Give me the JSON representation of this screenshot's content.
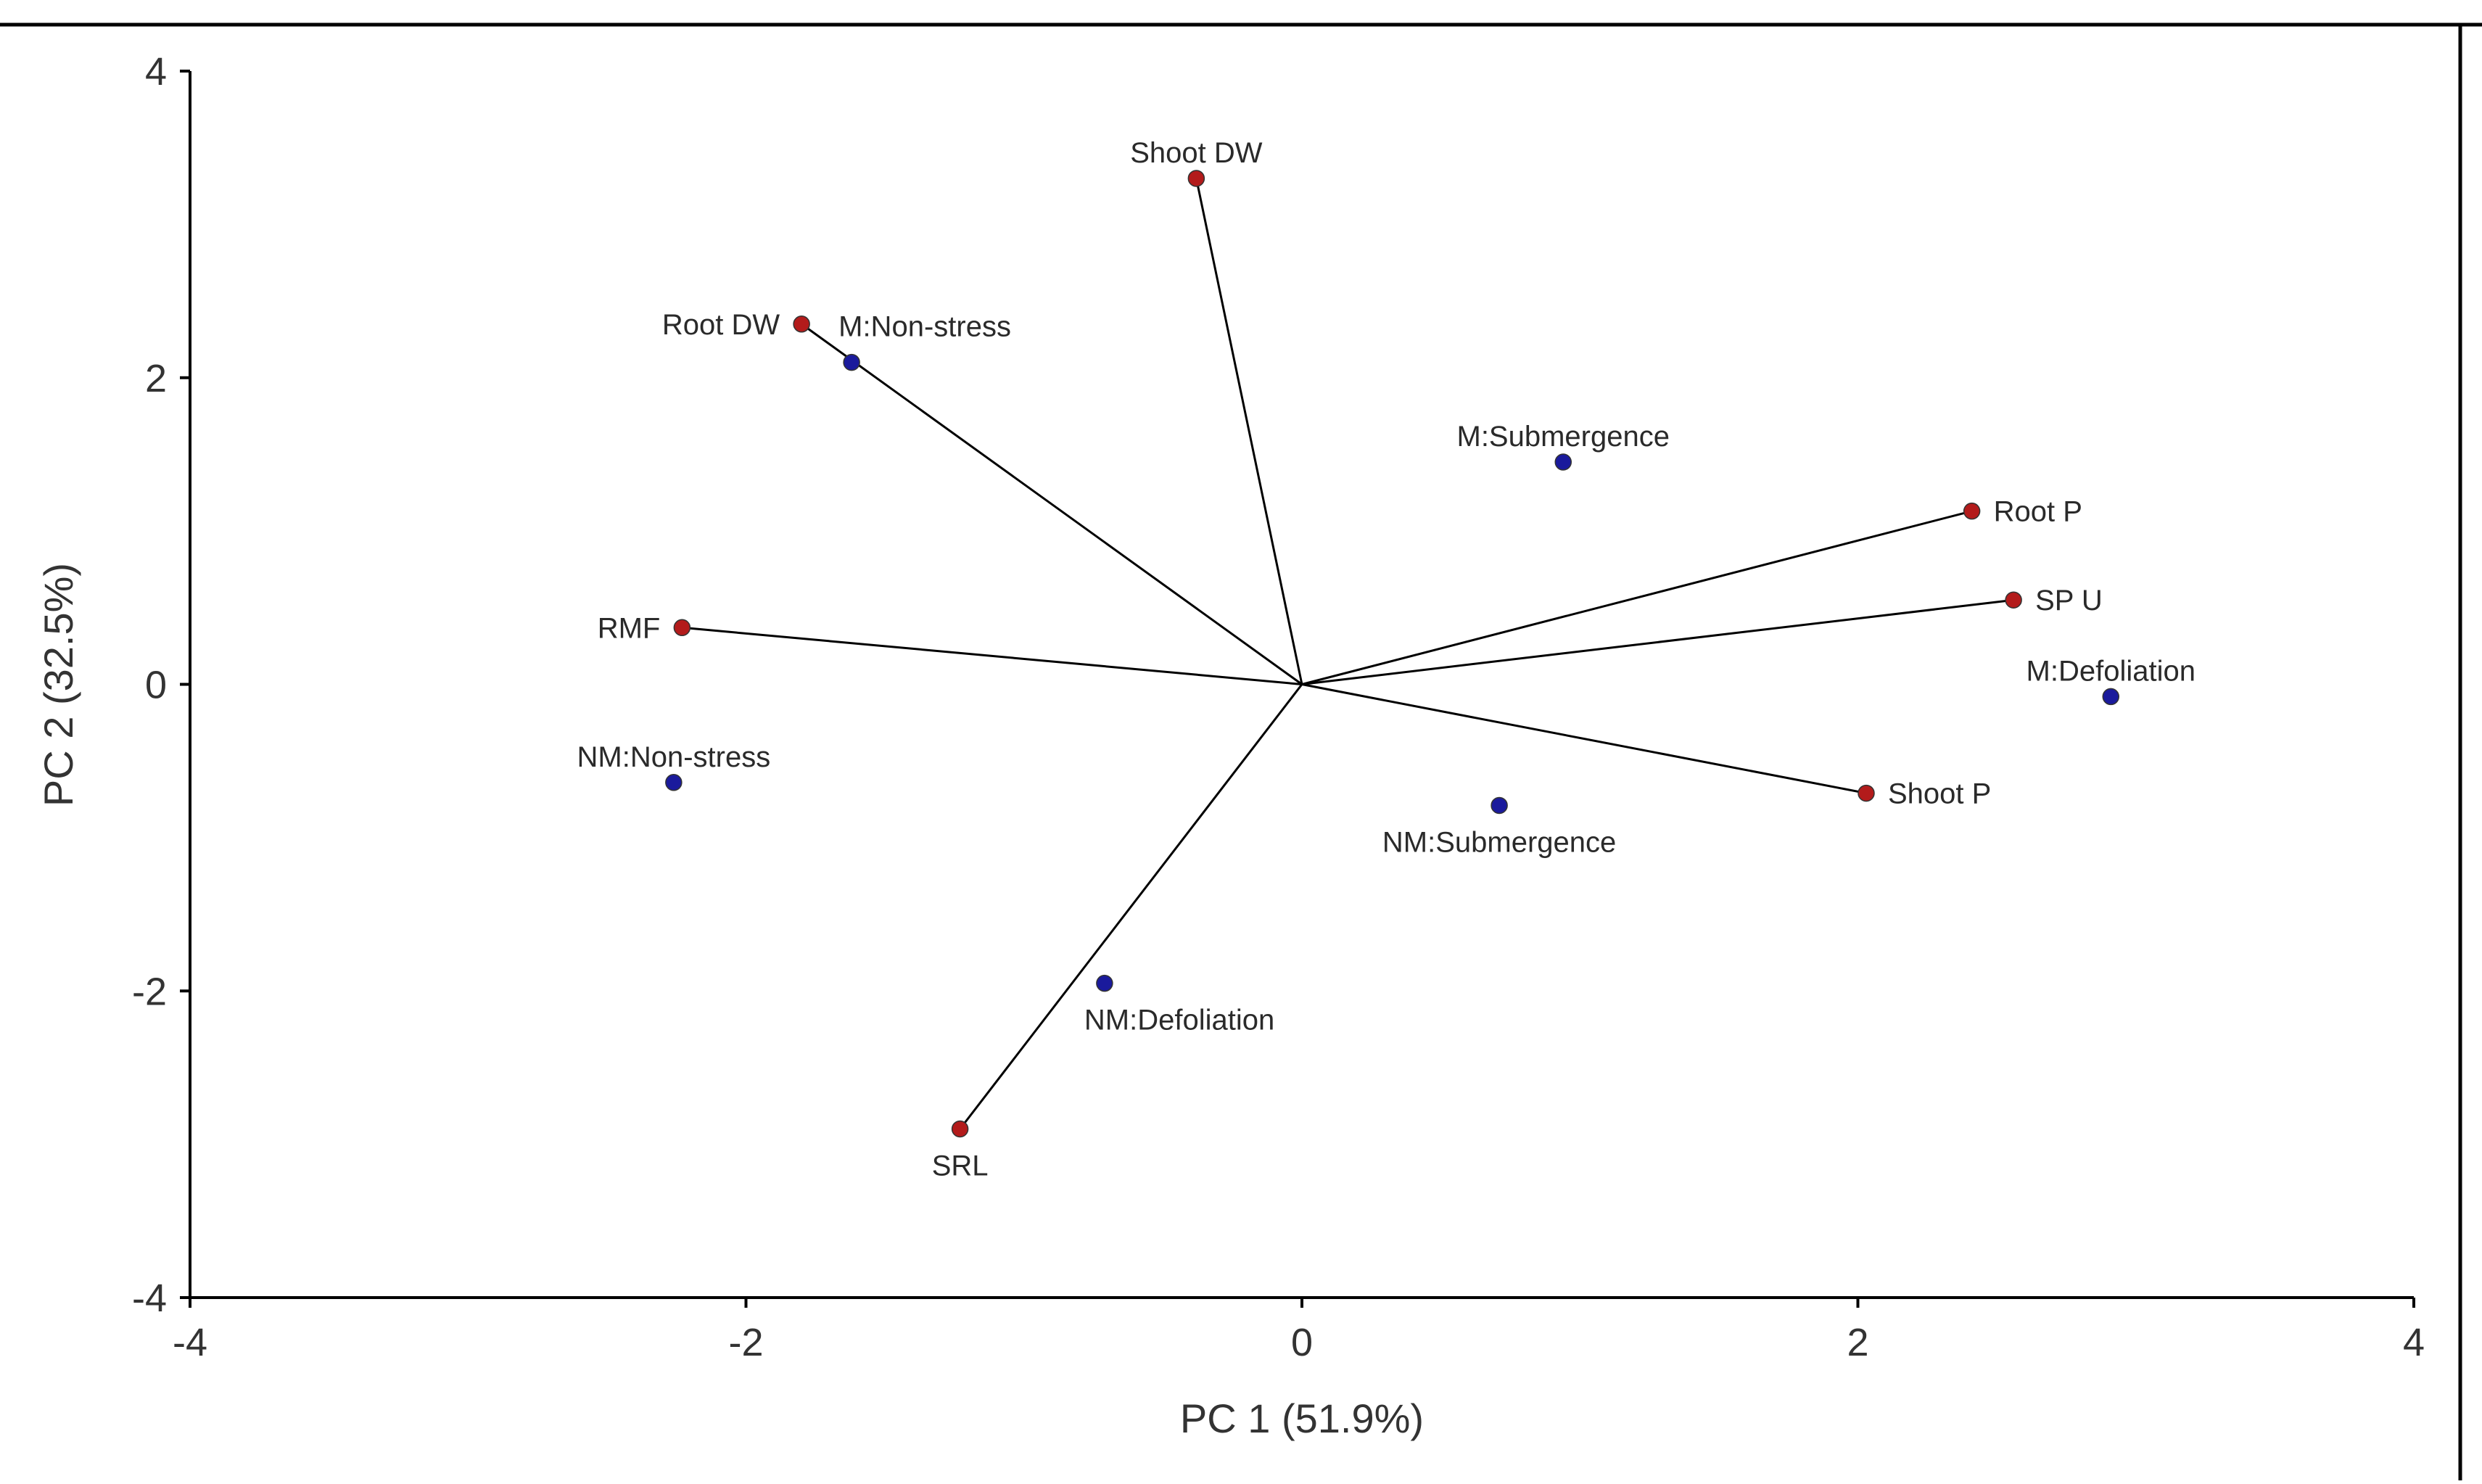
{
  "chart_data": {
    "type": "scatter",
    "subtype": "pca-biplot",
    "title": "",
    "xlabel": "PC 1 (51.9%)",
    "ylabel": "PC 2 (32.5%)",
    "xlim": [
      -4,
      4
    ],
    "ylim": [
      -4,
      4
    ],
    "xticks": [
      -4,
      -2,
      0,
      2,
      4
    ],
    "yticks": [
      -4,
      -2,
      0,
      2,
      4
    ],
    "grid": false,
    "colors": {
      "variables": "#b31b1b",
      "treatments": "#1a1a9c",
      "vectors": "#000000",
      "axes": "#000000"
    },
    "series": [
      {
        "name": "variables",
        "role": "loading-vectors",
        "points": [
          {
            "label": "Shoot DW",
            "x": -0.38,
            "y": 3.3,
            "label_pos": "above"
          },
          {
            "label": "Root DW",
            "x": -1.8,
            "y": 2.35,
            "label_pos": "left"
          },
          {
            "label": "RMF",
            "x": -2.23,
            "y": 0.37,
            "label_pos": "left"
          },
          {
            "label": "SRL",
            "x": -1.23,
            "y": -2.9,
            "label_pos": "below"
          },
          {
            "label": "Root P",
            "x": 2.41,
            "y": 1.13,
            "label_pos": "right"
          },
          {
            "label": "SP U",
            "x": 2.56,
            "y": 0.55,
            "label_pos": "right"
          },
          {
            "label": "Shoot P",
            "x": 2.03,
            "y": -0.71,
            "label_pos": "right"
          }
        ]
      },
      {
        "name": "treatments",
        "role": "scores",
        "points": [
          {
            "label": "M:Non-stress",
            "x": -1.62,
            "y": 2.1,
            "label_pos": "above-right"
          },
          {
            "label": "M:Submergence",
            "x": 0.94,
            "y": 1.45,
            "label_pos": "above"
          },
          {
            "label": "M:Defoliation",
            "x": 2.91,
            "y": -0.08,
            "label_pos": "above"
          },
          {
            "label": "NM:Non-stress",
            "x": -2.26,
            "y": -0.64,
            "label_pos": "above"
          },
          {
            "label": "NM:Submergence",
            "x": 0.71,
            "y": -0.79,
            "label_pos": "below"
          },
          {
            "label": "NM:Defoliation",
            "x": -0.71,
            "y": -1.95,
            "label_pos": "below-right"
          }
        ]
      }
    ]
  }
}
